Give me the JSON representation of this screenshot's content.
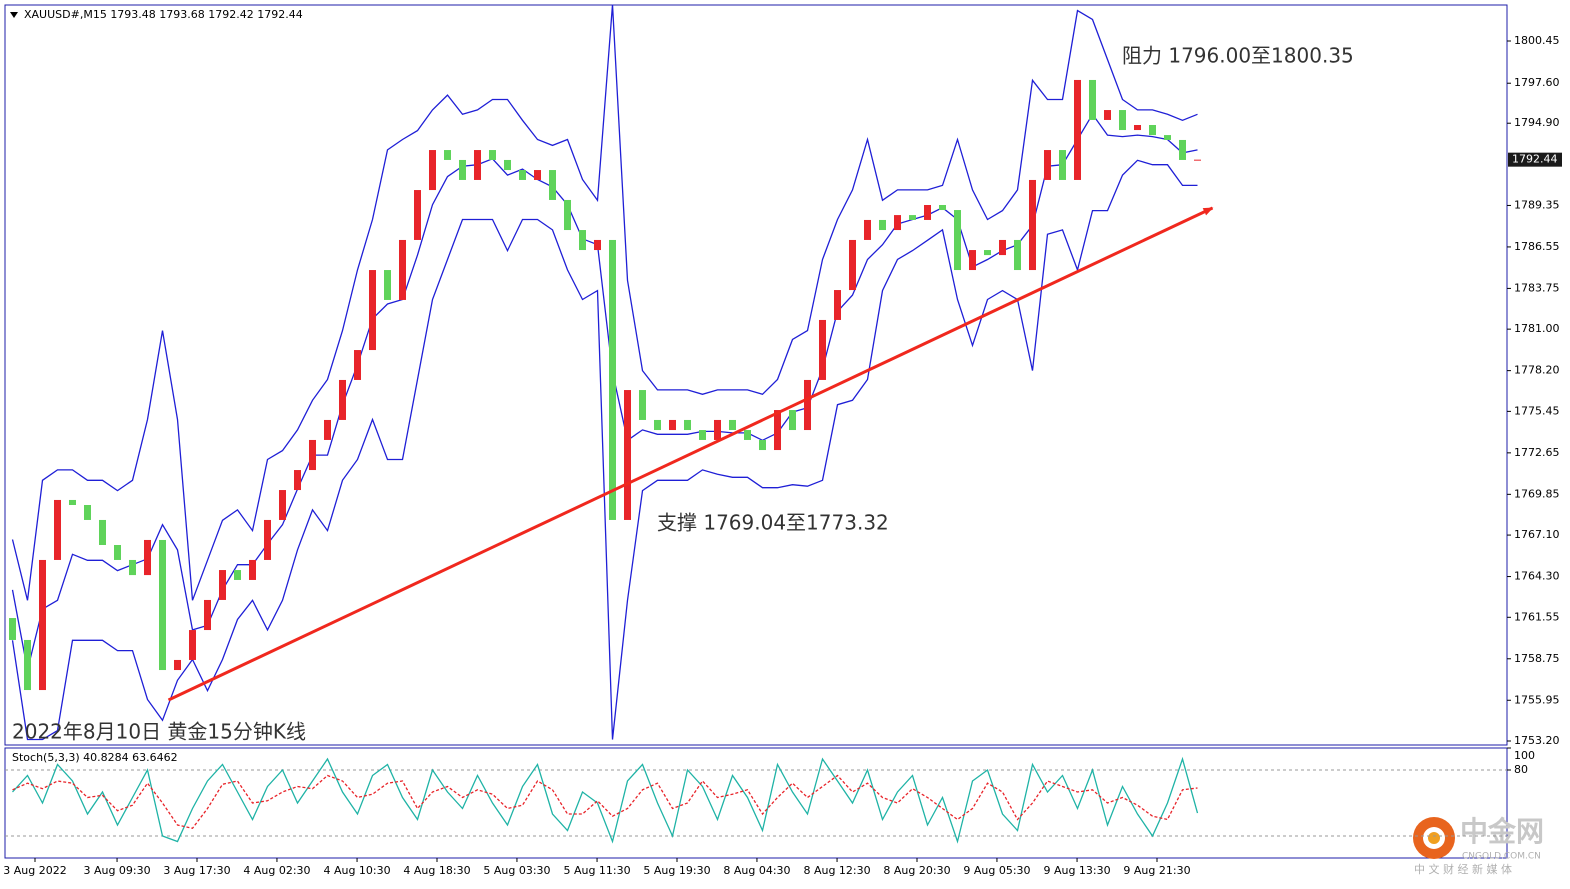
{
  "chart_data": [
    {
      "type": "candlestick",
      "title": "XAUUSD#,M15  1793.48 1793.68 1792.42 1792.44",
      "up_color": "#e8242a",
      "down_color": "#5fd35a",
      "band_color": "#1f1fd6",
      "xlim": [
        -0.5,
        99.5
      ],
      "xticks": [
        {
          "value": 1.5,
          "label": "3 Aug 2022"
        },
        {
          "value": 6.97,
          "label": "3 Aug 09:30"
        },
        {
          "value": 12.3,
          "label": "3 Aug 17:30"
        },
        {
          "value": 17.63,
          "label": "4 Aug 02:30"
        },
        {
          "value": 22.97,
          "label": "4 Aug 10:30"
        },
        {
          "value": 28.3,
          "label": "4 Aug 18:30"
        },
        {
          "value": 33.63,
          "label": "5 Aug 03:30"
        },
        {
          "value": 38.97,
          "label": "5 Aug 11:30"
        },
        {
          "value": 44.3,
          "label": "5 Aug 19:30"
        },
        {
          "value": 49.63,
          "label": "8 Aug 04:30"
        },
        {
          "value": 54.97,
          "label": "8 Aug 12:30"
        },
        {
          "value": 60.3,
          "label": "8 Aug 20:30"
        },
        {
          "value": 65.63,
          "label": "9 Aug 05:30"
        },
        {
          "value": 70.97,
          "label": "9 Aug 13:30"
        },
        {
          "value": 76.3,
          "label": "9 Aug 21:30"
        }
      ],
      "ylim": [
        1752.93,
        1802.88
      ],
      "yticks": [
        1800.45,
        {
          "value": 1797.6,
          "label": "1797.60"
        },
        {
          "value": 1794.9,
          "label": "1794.90"
        },
        1789.35,
        1786.55,
        1783.75,
        {
          "value": 1781,
          "label": "1781.00"
        },
        {
          "value": 1778.2,
          "label": "1778.20"
        },
        1775.45,
        1772.65,
        1769.85,
        {
          "value": 1767.1,
          "label": "1767.10"
        },
        {
          "value": 1764.3,
          "label": "1764.30"
        },
        1761.55,
        1758.75,
        1755.95,
        {
          "value": 1753.2,
          "label": "1753.20"
        }
      ],
      "last_price": 1792.44,
      "open": [
        1761.5,
        1760.02,
        1756.64,
        1765.42,
        1769.47,
        1769.13,
        1768.12,
        1766.43,
        1765.42,
        1764.4,
        1766.77,
        1757.99,
        1758.67,
        1760.69,
        1762.72,
        1764.74,
        1764.07,
        1765.42,
        1768.12,
        1770.14,
        1771.49,
        1773.52,
        1774.87,
        1777.57,
        1779.59,
        1784.99,
        1782.97,
        1787.02,
        1790.39,
        1793.09,
        1792.42,
        1791.07,
        1793.09,
        1792.42,
        1791.74,
        1791.07,
        1791.74,
        1789.72,
        1787.69,
        1786.34,
        1787.02,
        1768.12,
        1776.89,
        1774.87,
        1774.19,
        1774.87,
        1774.19,
        1773.52,
        1774.87,
        1774.19,
        1773.52,
        1772.84,
        1775.54,
        1774.19,
        1777.57,
        1781.62,
        1783.64,
        1787.02,
        1788.37,
        1787.69,
        1788.7,
        1788.37,
        1789.38,
        1789.04,
        1784.99,
        1786.34,
        1786.0,
        1787.02,
        1784.99,
        1791.07,
        1793.09,
        1791.07,
        1797.82,
        1795.12,
        1795.79,
        1794.44,
        1794.78,
        1794.1,
        1793.77,
        1792.42
      ],
      "close": [
        1760.02,
        1756.64,
        1765.42,
        1769.47,
        1769.13,
        1768.12,
        1766.43,
        1765.42,
        1764.4,
        1766.77,
        1757.99,
        1758.67,
        1760.69,
        1762.72,
        1764.74,
        1764.07,
        1765.42,
        1768.12,
        1770.14,
        1771.49,
        1773.52,
        1774.87,
        1777.57,
        1779.59,
        1784.99,
        1782.97,
        1787.02,
        1790.39,
        1793.09,
        1792.42,
        1791.07,
        1793.09,
        1792.42,
        1791.74,
        1791.07,
        1791.74,
        1789.72,
        1787.69,
        1786.34,
        1787.02,
        1768.12,
        1776.89,
        1774.87,
        1774.19,
        1774.87,
        1774.19,
        1773.52,
        1774.87,
        1774.19,
        1773.52,
        1772.84,
        1775.54,
        1774.19,
        1777.57,
        1781.62,
        1783.64,
        1787.02,
        1788.37,
        1787.69,
        1788.7,
        1788.37,
        1789.38,
        1789.04,
        1784.99,
        1786.34,
        1786.0,
        1787.02,
        1784.99,
        1791.07,
        1793.09,
        1791.07,
        1797.82,
        1795.12,
        1795.79,
        1794.44,
        1794.78,
        1794.1,
        1793.77,
        1792.42,
        1792.44
      ],
      "bands": {
        "upper": [
          1766.8,
          1762.7,
          1770.8,
          1771.5,
          1771.5,
          1770.8,
          1770.8,
          1770.1,
          1770.8,
          1774.9,
          1780.9,
          1774.9,
          1762.7,
          1765.4,
          1768.1,
          1768.8,
          1767.4,
          1772.2,
          1772.8,
          1774.2,
          1776.2,
          1777.6,
          1780.9,
          1785.0,
          1788.4,
          1793.1,
          1793.8,
          1794.4,
          1795.8,
          1796.8,
          1795.5,
          1795.8,
          1796.5,
          1796.5,
          1795.1,
          1793.8,
          1793.4,
          1793.8,
          1791.1,
          1789.7,
          1802.9,
          1784.3,
          1778.2,
          1776.9,
          1776.9,
          1776.9,
          1776.6,
          1776.9,
          1776.9,
          1776.9,
          1776.6,
          1777.6,
          1780.3,
          1780.9,
          1785.7,
          1788.4,
          1790.4,
          1793.8,
          1789.7,
          1790.4,
          1790.4,
          1790.4,
          1790.7,
          1793.8,
          1790.4,
          1788.4,
          1789.0,
          1790.4,
          1797.8,
          1796.5,
          1796.5,
          1802.5,
          1801.9,
          1799.2,
          1796.5,
          1795.8,
          1795.8,
          1795.5,
          1795.1,
          1795.5
        ],
        "middle": [
          1763.4,
          1758.0,
          1762.1,
          1762.7,
          1765.8,
          1765.4,
          1765.4,
          1764.7,
          1765.1,
          1765.5,
          1767.8,
          1766.1,
          1760.7,
          1761.0,
          1763.4,
          1765.1,
          1765.1,
          1766.5,
          1767.8,
          1770.2,
          1772.5,
          1772.5,
          1775.9,
          1778.6,
          1781.7,
          1782.7,
          1783.0,
          1786.0,
          1789.4,
          1791.3,
          1792.0,
          1792.1,
          1792.5,
          1791.4,
          1791.8,
          1791.1,
          1790.6,
          1789.4,
          1787.1,
          1786.7,
          1778.1,
          1773.5,
          1774.2,
          1773.9,
          1773.9,
          1773.9,
          1774.1,
          1774.1,
          1774.0,
          1774.0,
          1773.5,
          1774.0,
          1775.4,
          1775.7,
          1778.3,
          1782.2,
          1783.3,
          1785.7,
          1786.7,
          1788.1,
          1788.4,
          1788.7,
          1789.2,
          1788.4,
          1785.2,
          1785.7,
          1786.3,
          1786.7,
          1788.0,
          1792.0,
          1792.1,
          1793.8,
          1795.5,
          1794.1,
          1794.0,
          1794.1,
          1794.0,
          1793.8,
          1792.9,
          1793.1
        ],
        "lower": [
          1760.0,
          1753.3,
          1753.3,
          1753.9,
          1760.0,
          1760.0,
          1760.0,
          1759.3,
          1759.3,
          1756.0,
          1754.6,
          1757.3,
          1758.7,
          1756.6,
          1758.7,
          1761.4,
          1762.7,
          1760.7,
          1762.7,
          1766.1,
          1768.8,
          1767.4,
          1770.8,
          1772.2,
          1774.9,
          1772.2,
          1772.2,
          1777.6,
          1783.0,
          1785.7,
          1788.4,
          1788.4,
          1788.4,
          1786.3,
          1788.4,
          1788.4,
          1787.7,
          1785.0,
          1783.0,
          1783.6,
          1753.3,
          1762.7,
          1770.1,
          1770.8,
          1770.8,
          1770.8,
          1771.5,
          1771.2,
          1771.0,
          1771.0,
          1770.3,
          1770.3,
          1770.5,
          1770.4,
          1770.8,
          1775.9,
          1776.2,
          1777.6,
          1783.6,
          1785.7,
          1786.3,
          1787.0,
          1787.7,
          1783.0,
          1779.9,
          1783.0,
          1783.6,
          1783.0,
          1778.2,
          1787.4,
          1787.7,
          1785.0,
          1789.0,
          1789.0,
          1791.4,
          1792.4,
          1792.1,
          1792.1,
          1790.7,
          1790.7
        ]
      },
      "trendline": {
        "x": [
          10.4,
          80.0
        ],
        "y": [
          1755.97,
          1789.18
        ],
        "color": "#f0281e"
      },
      "annotations": [
        "阻力 1796.00至1800.35",
        "支撑 1769.04至1773.32",
        "2022年8月10日 黄金15分钟K线"
      ]
    },
    {
      "type": "line",
      "title": "Stoch(5,3,3) 40.8284 63.6462",
      "ylim": [
        0,
        100
      ],
      "yticks": [
        100,
        80
      ],
      "levels": [
        80,
        20
      ],
      "main": {
        "color": "#1fb3a6",
        "values": [
          60,
          75,
          50,
          85,
          70,
          40,
          60,
          30,
          55,
          80,
          20,
          15,
          45,
          70,
          85,
          60,
          35,
          65,
          80,
          50,
          70,
          90,
          60,
          40,
          75,
          85,
          55,
          35,
          80,
          60,
          45,
          75,
          50,
          30,
          65,
          85,
          40,
          25,
          60,
          50,
          15,
          70,
          85,
          50,
          20,
          80,
          65,
          35,
          75,
          55,
          25,
          85,
          60,
          40,
          90,
          70,
          50,
          80,
          35,
          60,
          75,
          30,
          55,
          15,
          70,
          80,
          40,
          25,
          85,
          60,
          75,
          45,
          80,
          30,
          65,
          40,
          20,
          50,
          90,
          40.83
        ]
      },
      "signal": {
        "color": "#e8242a",
        "values": [
          62,
          68,
          63,
          70,
          68,
          55,
          57,
          43,
          48,
          68,
          50,
          30,
          27,
          45,
          67,
          70,
          50,
          52,
          60,
          65,
          63,
          75,
          70,
          55,
          58,
          68,
          70,
          45,
          60,
          65,
          55,
          62,
          58,
          45,
          48,
          70,
          62,
          40,
          40,
          52,
          38,
          45,
          62,
          68,
          45,
          50,
          70,
          55,
          58,
          62,
          40,
          55,
          68,
          55,
          65,
          75,
          60,
          68,
          55,
          50,
          63,
          55,
          45,
          35,
          45,
          68,
          60,
          35,
          50,
          70,
          65,
          60,
          62,
          50,
          55,
          48,
          38,
          35,
          62,
          63.65
        ]
      }
    }
  ],
  "watermark": {
    "name": "中金网",
    "domain": "CNGOLD.COM.CN",
    "slogan": "中 文 财 经 新 媒 体"
  }
}
